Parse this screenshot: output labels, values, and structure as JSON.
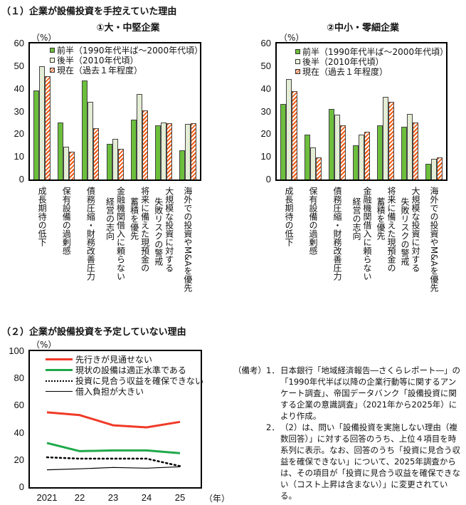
{
  "section1": {
    "title": "（１）企業が設備投資を手控えていた理由"
  },
  "section2": {
    "title": "（２）企業が設備投資を予定していない理由"
  },
  "unit_pct": "（%）",
  "year_unit": "（年）",
  "legend_bar": [
    {
      "label": "前半（1990年代半ば～2000年代頃）",
      "color": "#6cbf3c"
    },
    {
      "label": "後半（2010年代頃）",
      "color": "#f3f8ea"
    },
    {
      "label": "現在（過去１年程度）",
      "color": "#f05a14"
    }
  ],
  "categories": [
    {
      "line1": "成長期待の低下",
      "line2": ""
    },
    {
      "line1": "保有設備の過剰感",
      "line2": ""
    },
    {
      "line1": "債務圧縮・財務改善圧力",
      "line2": ""
    },
    {
      "line1": "金融機関借入に頼らない",
      "line2": "経営の志向"
    },
    {
      "line1": "将来に備えた現預金の",
      "line2": "蓄積を優先"
    },
    {
      "line1": "大規模な投資に対する",
      "line2": "失敗リスクの警戒"
    },
    {
      "line1": "海外での投資やM&Aを優先",
      "line2": ""
    }
  ],
  "y_ticks_bar": [
    "60",
    "50",
    "40",
    "30",
    "20",
    "10",
    "0"
  ],
  "y_ticks_line": [
    "100",
    "80",
    "60",
    "40",
    "20",
    "0"
  ],
  "x_ticks_line": [
    "2021",
    "22",
    "23",
    "24",
    "25"
  ],
  "notes": {
    "label": "（備考）",
    "items": [
      {
        "num": "1．",
        "text": "日本銀行「地域経済報告―さくらレポート―」の「1990年代半ば以降の企業行動等に関するアンケート調査」、帝国データバンク「設備投資に関する企業の意識調査」（2021年から2025年）により作成。"
      },
      {
        "num": "2．",
        "text": "（2）は、問い「設備投資を実施しない理由（複数回答）」に対する回答のうち、上位４項目を時系列に表示。なお、回答のうち「投資に見合う収益を確保できない」について、2025年調査からは、その項目が「投資に見合う収益を確保できない（コスト上昇は含まない）」に変更されている。"
      }
    ]
  },
  "chart_data": [
    {
      "type": "bar",
      "title": "①大・中堅企業",
      "ylabel": "（%）",
      "ylim": [
        0,
        60
      ],
      "categories": [
        "成長期待の低下",
        "保有設備の過剰感",
        "債務圧縮・財務改善圧力",
        "金融機関借入に頼らない経営の志向",
        "将来に備えた現預金の蓄積を優先",
        "大規模な投資に対する失敗リスクの警戒",
        "海外での投資やM&Aを優先"
      ],
      "series": [
        {
          "name": "前半（1990年代半ば～2000年代頃）",
          "values": [
            39.2,
            25.2,
            43.6,
            15.6,
            26.5,
            24.0,
            12.8
          ]
        },
        {
          "name": "後半（2010年代頃）",
          "values": [
            49.9,
            14.3,
            34.3,
            17.8,
            37.6,
            25.2,
            24.6
          ]
        },
        {
          "name": "現在（過去１年程度）",
          "values": [
            45.5,
            12.3,
            22.5,
            13.4,
            30.5,
            24.9,
            24.9
          ]
        }
      ],
      "legend_position": "top-left inside"
    },
    {
      "type": "bar",
      "title": "②中小・零細企業",
      "ylabel": "（%）",
      "ylim": [
        0,
        60
      ],
      "categories": [
        "成長期待の低下",
        "保有設備の過剰感",
        "債務圧縮・財務改善圧力",
        "金融機関借入に頼らない経営の志向",
        "将来に備えた現預金の蓄積を優先",
        "大規模な投資に対する失敗リスクの警戒",
        "海外での投資やM&Aを優先"
      ],
      "series": [
        {
          "name": "前半（1990年代半ば～2000年代頃）",
          "values": [
            33.4,
            19.7,
            31.0,
            15.0,
            23.9,
            23.2,
            6.8
          ]
        },
        {
          "name": "後半（2010年代頃）",
          "values": [
            44.2,
            14.0,
            28.5,
            19.9,
            36.6,
            28.9,
            9.0
          ]
        },
        {
          "name": "現在（過去１年程度）",
          "values": [
            39.0,
            9.7,
            23.9,
            21.2,
            34.4,
            25.0,
            9.7
          ]
        }
      ],
      "legend_position": "top-left inside"
    },
    {
      "type": "line",
      "title": "（２）企業が設備投資を予定していない理由",
      "ylabel": "（%）",
      "xlabel": "（年）",
      "ylim": [
        0,
        100
      ],
      "x": [
        "2021",
        "22",
        "23",
        "24",
        "25"
      ],
      "series": [
        {
          "name": "先行きが見通せない",
          "values": [
            55.0,
            53.0,
            45.5,
            44.0,
            48.0
          ],
          "color": "#f03a28",
          "style": "solid-thick"
        },
        {
          "name": "現状の設備は適正水準である",
          "values": [
            32.5,
            26.5,
            27.0,
            27.0,
            25.0
          ],
          "color": "#1fa84a",
          "style": "solid-thick"
        },
        {
          "name": "投資に見合う収益を確保できない",
          "values": [
            22.0,
            21.0,
            21.0,
            21.0,
            15.5
          ],
          "color": "#000000",
          "style": "dotted"
        },
        {
          "name": "借入負担が大きい",
          "values": [
            12.8,
            13.5,
            14.5,
            14.0,
            15.0
          ],
          "color": "#000000",
          "style": "solid-thin"
        }
      ],
      "legend_position": "top-left inside"
    }
  ]
}
